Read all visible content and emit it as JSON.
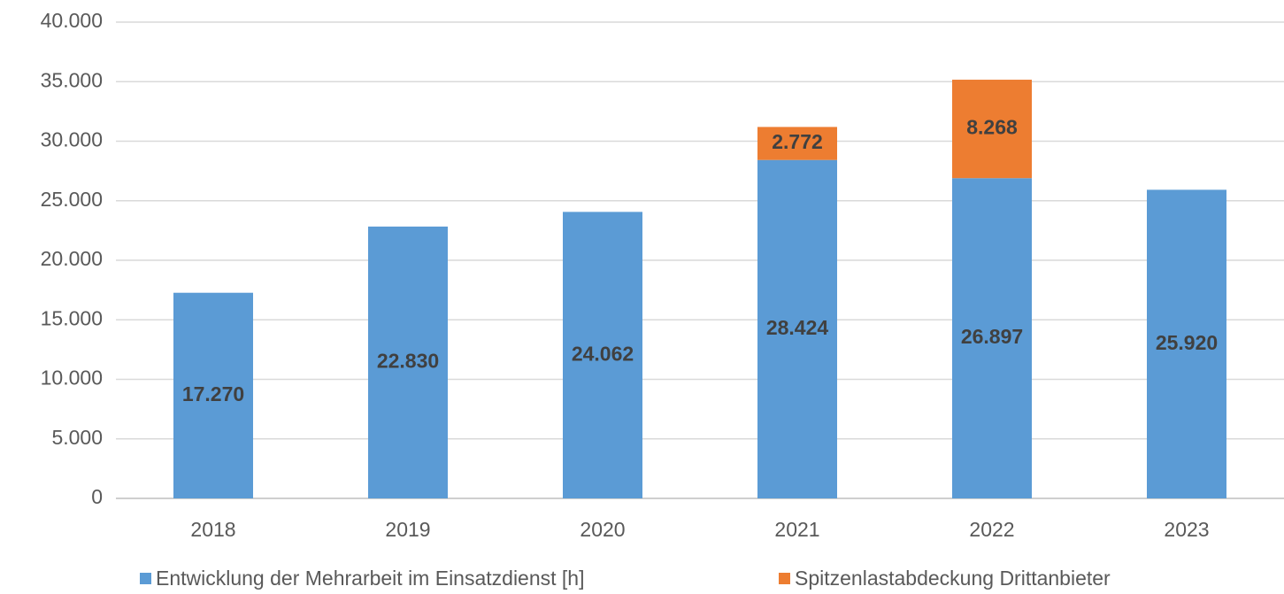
{
  "chart_data": {
    "type": "stacked_bar",
    "categories": [
      "2018",
      "2019",
      "2020",
      "2021",
      "2022",
      "2023"
    ],
    "series": [
      {
        "name": "Entwicklung der Mehrarbeit im Einsatzdienst [h]",
        "color": "#5b9bd5",
        "values": [
          17270,
          22830,
          24062,
          28424,
          26897,
          25920
        ],
        "value_labels": [
          "17.270",
          "22.830",
          "24.062",
          "28.424",
          "26.897",
          "25.920"
        ]
      },
      {
        "name": "Spitzenlastabdeckung Drittanbieter",
        "color": "#ed7d31",
        "values": [
          null,
          null,
          null,
          2772,
          8268,
          null
        ],
        "value_labels": [
          null,
          null,
          null,
          "2.772",
          "8.268",
          null
        ]
      }
    ],
    "ylim": [
      0,
      40000
    ],
    "yticks": [
      0,
      {
        "value": 5000,
        "label": "5.000"
      },
      {
        "value": 10000,
        "label": "10.000"
      },
      {
        "value": 15000,
        "label": "15.000"
      },
      {
        "value": 20000,
        "label": "20.000"
      },
      {
        "value": 25000,
        "label": "25.000"
      },
      {
        "value": 30000,
        "label": "30.000"
      },
      {
        "value": 35000,
        "label": "35.000"
      },
      {
        "value": 40000,
        "label": "40.000"
      }
    ],
    "grid": true,
    "legend": "bottom"
  }
}
